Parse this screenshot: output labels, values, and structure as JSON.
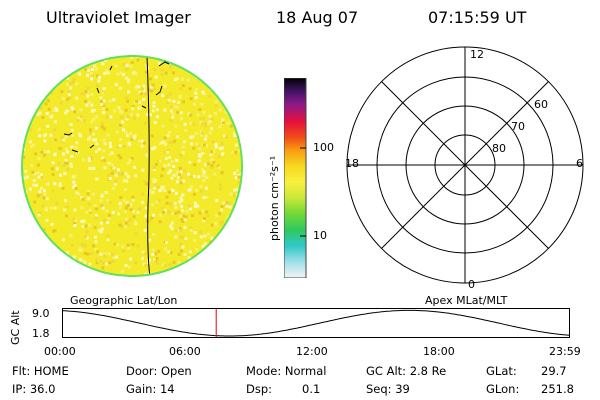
{
  "header": {
    "instrument": "Ultraviolet Imager",
    "date": "18 Aug 07",
    "time": "07:15:59 UT"
  },
  "colorbar": {
    "unit_label": "photon cm⁻²s⁻¹",
    "ticks": [
      "100",
      "10"
    ]
  },
  "polar_plot": {
    "hour_labels": {
      "top": "12",
      "left": "18",
      "right": "6",
      "bottom": "0"
    },
    "lat_labels": [
      "60",
      "70",
      "80"
    ]
  },
  "orbit_plot": {
    "left_title": "Geographic Lat/Lon",
    "right_title": "Apex MLat/MLT",
    "ylabel": "GC Alt",
    "yticks": [
      "9.0",
      "1.8"
    ],
    "xticks": [
      "00:00",
      "06:00",
      "12:00",
      "18:00",
      "23:59"
    ],
    "current_time_hours": 7.27,
    "marker_color": "#e00000"
  },
  "info": {
    "flt": "Flt: HOME",
    "ip": "IP: 36.0",
    "door": "Door: Open",
    "gain": "Gain: 14",
    "mode": "Mode: Normal",
    "dsp": "Dsp:",
    "dsp_value": "0.1",
    "gc_alt": "GC Alt: 2.8 Re",
    "seq": "Seq: 39",
    "glat": "GLat:",
    "glat_value": "29.7",
    "glon": "GLon:",
    "glon_value": "251.8"
  }
}
